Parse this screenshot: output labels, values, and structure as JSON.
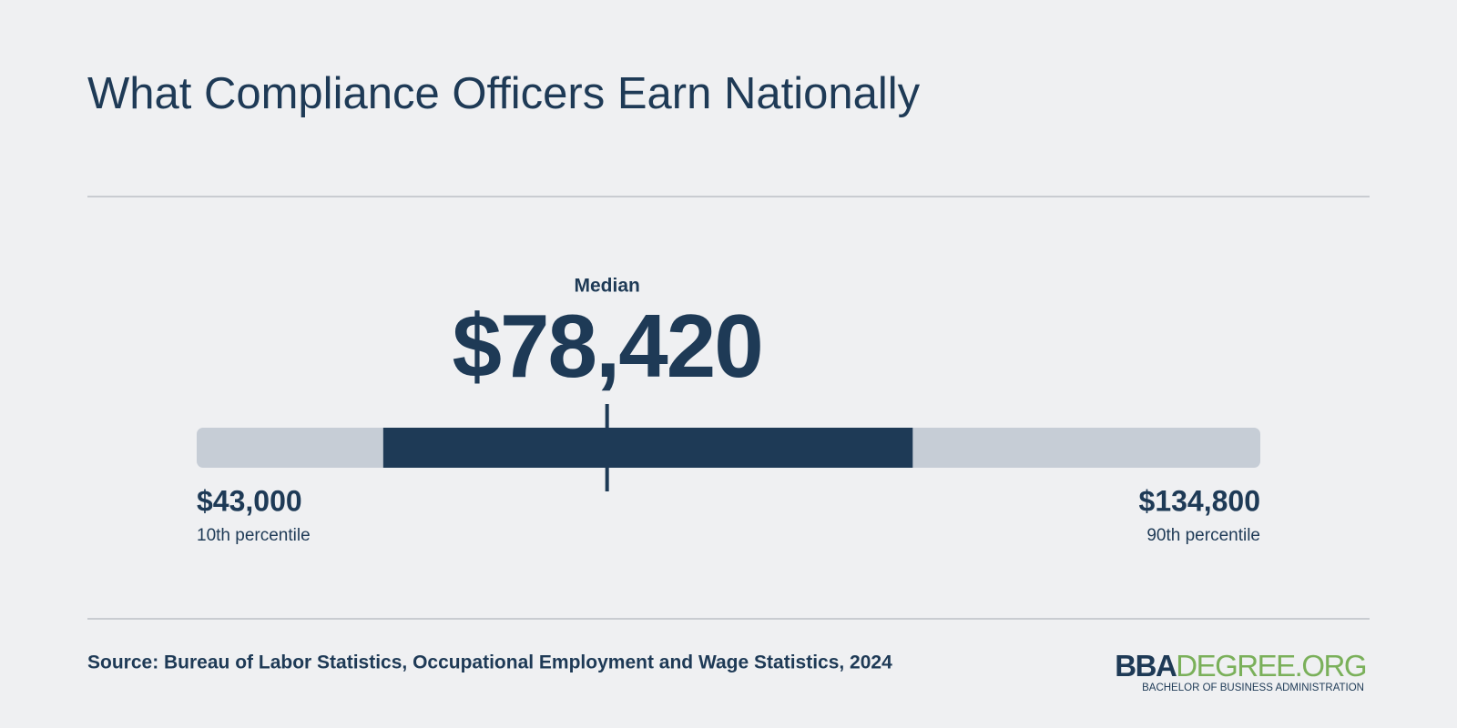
{
  "chart_data": {
    "type": "range",
    "title": "What Compliance Officers Earn Nationally",
    "xlim": [
      43000,
      134800
    ],
    "band": [
      59100,
      104800
    ],
    "median": {
      "label": "Median",
      "value": 78420,
      "value_label": "$78,420"
    },
    "low": {
      "value": 43000,
      "value_label": "$43,000",
      "label": "10th percentile"
    },
    "high": {
      "value": 134800,
      "value_label": "$134,800",
      "label": "90th percentile"
    },
    "track_color": "#c6cdd6",
    "band_color": "#1e3a56"
  },
  "source": "Source: Bureau of Labor Statistics, Occupational Employment and Wage Statistics, 2024",
  "logo": {
    "name": "BBA",
    "domain": "DEGREE.ORG",
    "tagline": "BACHELOR OF BUSINESS ADMINISTRATION"
  }
}
